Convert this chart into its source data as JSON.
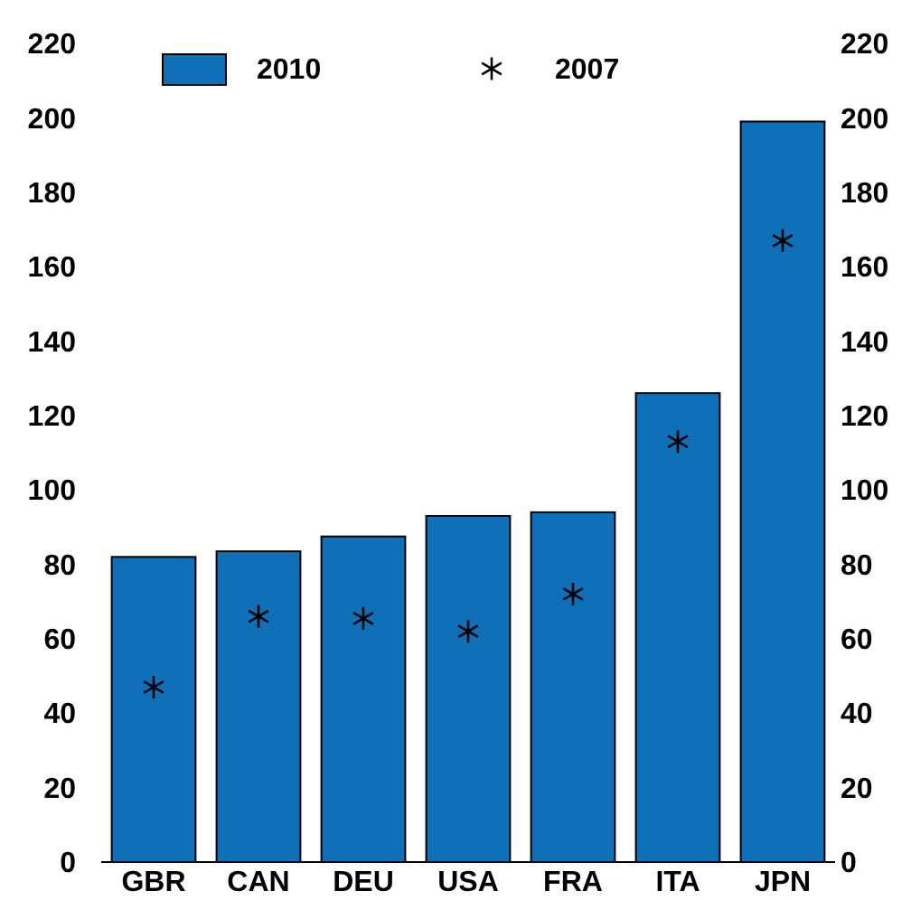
{
  "chart_data": {
    "type": "bar",
    "categories": [
      "GBR",
      "CAN",
      "DEU",
      "USA",
      "FRA",
      "ITA",
      "JPN"
    ],
    "series": [
      {
        "name": "2010",
        "color": "#0f70b7",
        "values": [
          82,
          83.5,
          87.5,
          93,
          94,
          126,
          199
        ]
      },
      {
        "name": "2007",
        "type": "scatter",
        "color": "#000000",
        "marker": "cross",
        "values": [
          47,
          66,
          65.5,
          62,
          72,
          113,
          167
        ]
      }
    ],
    "ylim": [
      0,
      220
    ],
    "yticks": [
      0,
      20,
      40,
      60,
      80,
      100,
      120,
      140,
      160,
      180,
      200,
      220
    ],
    "y2lim": [
      0,
      220
    ],
    "y2ticks": [
      0,
      20,
      40,
      60,
      80,
      100,
      120,
      140,
      160,
      180,
      200,
      220
    ],
    "grid": false,
    "legend": "top"
  }
}
